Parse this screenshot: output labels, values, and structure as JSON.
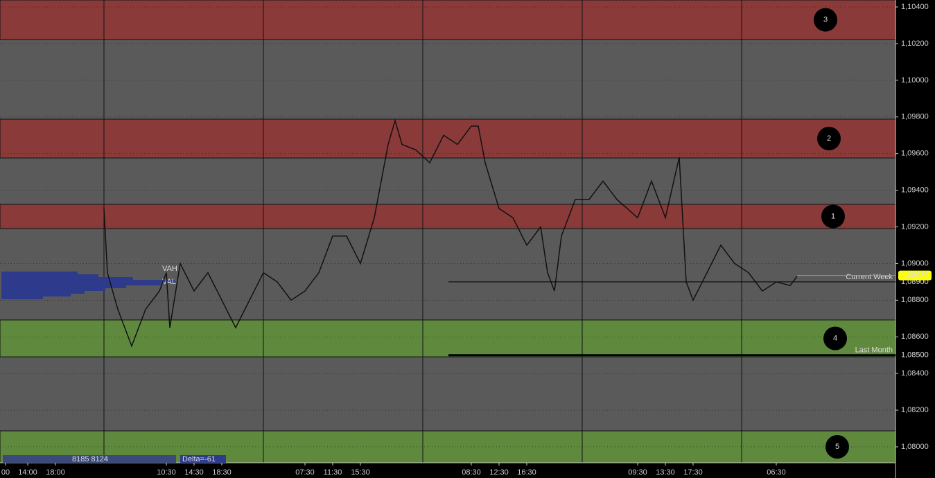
{
  "chart_data": {
    "type": "line",
    "xlim": [
      0,
      129.2
    ],
    "ylim": [
      1.07913,
      1.10438
    ],
    "xticks": [
      {
        "value": 0.8,
        "label": "00"
      },
      {
        "value": 4.0,
        "label": "14:00"
      },
      {
        "value": 8.0,
        "label": "18:00"
      },
      {
        "value": 24.0,
        "label": "10:30"
      },
      {
        "value": 28.0,
        "label": "14:30"
      },
      {
        "value": 32.0,
        "label": "18:30"
      },
      {
        "value": 44.0,
        "label": "07:30"
      },
      {
        "value": 48.0,
        "label": "11:30"
      },
      {
        "value": 52.0,
        "label": "15:30"
      },
      {
        "value": 68.0,
        "label": "08:30"
      },
      {
        "value": 72.0,
        "label": "12:30"
      },
      {
        "value": 76.0,
        "label": "16:30"
      },
      {
        "value": 92.0,
        "label": "09:30"
      },
      {
        "value": 96.0,
        "label": "13:30"
      },
      {
        "value": 100.0,
        "label": "17:30"
      },
      {
        "value": 112.0,
        "label": "06:30"
      }
    ],
    "yticks": [
      {
        "value": 1.104,
        "label": "1,10400"
      },
      {
        "value": 1.102,
        "label": "1,10200"
      },
      {
        "value": 1.1,
        "label": "1,10000"
      },
      {
        "value": 1.098,
        "label": "1,09800"
      },
      {
        "value": 1.096,
        "label": "1,09600"
      },
      {
        "value": 1.094,
        "label": "1,09400"
      },
      {
        "value": 1.092,
        "label": "1,09200"
      },
      {
        "value": 1.09,
        "label": "1,09000"
      },
      {
        "value": 1.088,
        "label": "1,08800"
      },
      {
        "value": 1.086,
        "label": "1,08600"
      },
      {
        "value": 1.084,
        "label": "1,08400"
      },
      {
        "value": 1.082,
        "label": "1,08200"
      },
      {
        "value": 1.08,
        "label": "1,08000"
      }
    ],
    "series": [
      {
        "color": "#111111",
        "x": [
          15,
          15.5,
          17,
          19,
          21,
          23,
          24,
          24.5,
          26,
          28,
          30,
          32,
          34,
          36,
          38,
          40,
          42,
          44,
          46,
          48,
          50,
          52,
          54,
          55,
          56,
          57,
          58,
          60,
          62,
          64,
          66,
          68,
          69,
          70,
          72,
          74,
          76,
          78,
          79,
          80,
          81,
          83,
          85,
          87,
          89,
          92,
          94,
          96,
          98,
          99,
          100,
          102,
          104,
          106,
          108,
          110,
          112,
          114,
          115
        ],
        "values": [
          1.093,
          1.0895,
          1.0875,
          1.0855,
          1.0875,
          1.0885,
          1.0895,
          1.0865,
          1.09,
          1.0885,
          1.0895,
          1.088,
          1.0865,
          1.088,
          1.0895,
          1.089,
          1.088,
          1.0885,
          1.0895,
          1.0915,
          1.0915,
          1.09,
          1.0925,
          1.0945,
          1.0965,
          1.0978,
          1.0965,
          1.0962,
          1.0955,
          1.097,
          1.0965,
          1.0975,
          1.0975,
          1.0955,
          1.093,
          1.0925,
          1.091,
          1.092,
          1.0895,
          1.0885,
          1.0915,
          1.0935,
          1.0935,
          1.0945,
          1.0935,
          1.0925,
          1.0945,
          1.0925,
          1.0958,
          1.089,
          1.088,
          1.0895,
          1.091,
          1.09,
          1.0895,
          1.0885,
          1.089,
          1.0888,
          1.0893
        ]
      }
    ],
    "zones": [
      {
        "label": "3",
        "from": 1.10222,
        "to": 1.10438,
        "color": "#8b3a3a"
      },
      {
        "label": "2",
        "from": 1.09576,
        "to": 1.09788,
        "color": "#8b3a3a"
      },
      {
        "label": "1",
        "from": 1.09191,
        "to": 1.09323,
        "color": "#8b3a3a"
      },
      {
        "label": "4",
        "from": 1.08491,
        "to": 1.08692,
        "color": "#5f8a3e"
      },
      {
        "label": "5",
        "from": 1.07913,
        "to": 1.08087,
        "color": "#5f8a3e"
      }
    ],
    "levels": [
      {
        "name": "Current Week",
        "value": 1.089,
        "label": "1,08900"
      },
      {
        "name": "Last Month",
        "value": 1.085,
        "label": "1,08500"
      }
    ],
    "last_price": {
      "value": 1.08935,
      "label": "1,08935"
    },
    "annotations": [
      "VAH",
      "VAL",
      "8185 8124",
      "Delta=-61"
    ]
  }
}
